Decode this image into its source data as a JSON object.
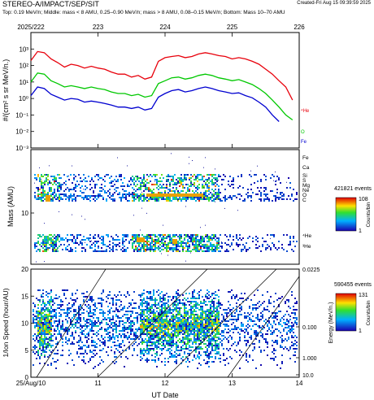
{
  "header": {
    "title": "STEREO-A/IMPACT/SEP/SIT",
    "created": "Created-Fri Aug 15 09:39:59 2025",
    "subtitle": "Top: 0.19 MeV/n; Middle: mass < 8 AMU, 0.25–0.90 MeV/n; mass > 8 AMU, 0.08–0.15 MeV/n; Bottom: Mass 10–70 AMU"
  },
  "colors": {
    "he": "#e8000b",
    "o": "#00c800",
    "fe": "#0000d0"
  },
  "chart_data": [
    {
      "type": "line",
      "panel": "top",
      "top_axis_labels": [
        "2025/222",
        "223",
        "224",
        "225",
        "226"
      ],
      "x": [
        222.0,
        222.1,
        222.2,
        222.3,
        222.4,
        222.5,
        222.6,
        222.7,
        222.8,
        222.9,
        223.0,
        223.1,
        223.2,
        223.3,
        223.4,
        223.5,
        223.6,
        223.7,
        223.8,
        223.9,
        224.0,
        224.1,
        224.2,
        224.3,
        224.4,
        224.5,
        224.6,
        224.7,
        224.8,
        224.9,
        225.0,
        225.1,
        225.2,
        225.3,
        225.4,
        225.5,
        225.6,
        225.7,
        225.8,
        225.9
      ],
      "xlim": [
        222.0,
        226.0
      ],
      "ylabel": "#/(cm² s sr MeV/n.)",
      "ylim": [
        0.001,
        10000
      ],
      "yscale": "log",
      "ytick_labels": [
        "10⁻³",
        "10⁻²",
        "10⁻¹",
        "10⁰",
        "10¹",
        "10²",
        "10³"
      ],
      "series": [
        {
          "name": "⁴He",
          "color": "#e8000b",
          "values": [
            200,
            700,
            600,
            250,
            150,
            80,
            120,
            100,
            70,
            90,
            70,
            60,
            40,
            30,
            30,
            20,
            25,
            15,
            20,
            180,
            300,
            350,
            400,
            300,
            350,
            500,
            600,
            500,
            400,
            350,
            250,
            300,
            250,
            180,
            120,
            60,
            30,
            12,
            5,
            0.8
          ]
        },
        {
          "name": "O",
          "color": "#00c800",
          "values": [
            10,
            35,
            30,
            12,
            8,
            5,
            6,
            5,
            4,
            5,
            4,
            3.5,
            2.5,
            2,
            2,
            1.5,
            1.8,
            1.2,
            1.5,
            8,
            12,
            18,
            20,
            15,
            18,
            25,
            30,
            25,
            18,
            15,
            12,
            14,
            10,
            7,
            4,
            2,
            0.8,
            0.3,
            0.1,
            0.05
          ]
        },
        {
          "name": "Fe",
          "color": "#0000d0",
          "values": [
            1.5,
            5,
            4,
            1.8,
            1.2,
            0.8,
            1,
            0.9,
            0.6,
            0.7,
            0.6,
            0.5,
            0.4,
            0.3,
            0.3,
            0.25,
            0.3,
            0.2,
            0.25,
            1.2,
            2,
            3,
            3.5,
            2.5,
            3,
            4,
            5,
            4,
            3,
            2.5,
            2,
            2.2,
            1.5,
            1.1,
            0.6,
            0.3,
            0.1,
            0.04,
            null,
            null
          ]
        }
      ]
    },
    {
      "type": "heatmap",
      "panel": "middle",
      "ylabel": "Mass (AMU)",
      "ytick_labels": [
        "10"
      ],
      "species_labels": [
        "Fe",
        "Ca",
        "Si",
        "S",
        "Mg",
        "Ne",
        "O",
        "C",
        "⁴He",
        "³He"
      ],
      "colorbar": {
        "title": "421821 events",
        "label": "Counts/bin",
        "max": 108,
        "min": 1
      }
    },
    {
      "type": "heatmap",
      "panel": "bottom",
      "ylabel": "1/Ion Speed (hour/AU)",
      "xlabel": "UT Date",
      "x_tick_labels": [
        "25/Aug/10",
        "11",
        "12",
        "13",
        "14"
      ],
      "ytick_labels": [
        "0",
        "5",
        "10",
        "15",
        "20"
      ],
      "ylim": [
        0,
        20
      ],
      "right_axis_label": "Energy (MeV/n.)",
      "right_tick_labels": [
        "0.0225",
        "0.100",
        "1.000",
        "10.0"
      ],
      "colorbar": {
        "title": "590455 events",
        "label": "Counts/bin",
        "max": 131,
        "min": 1
      }
    }
  ]
}
